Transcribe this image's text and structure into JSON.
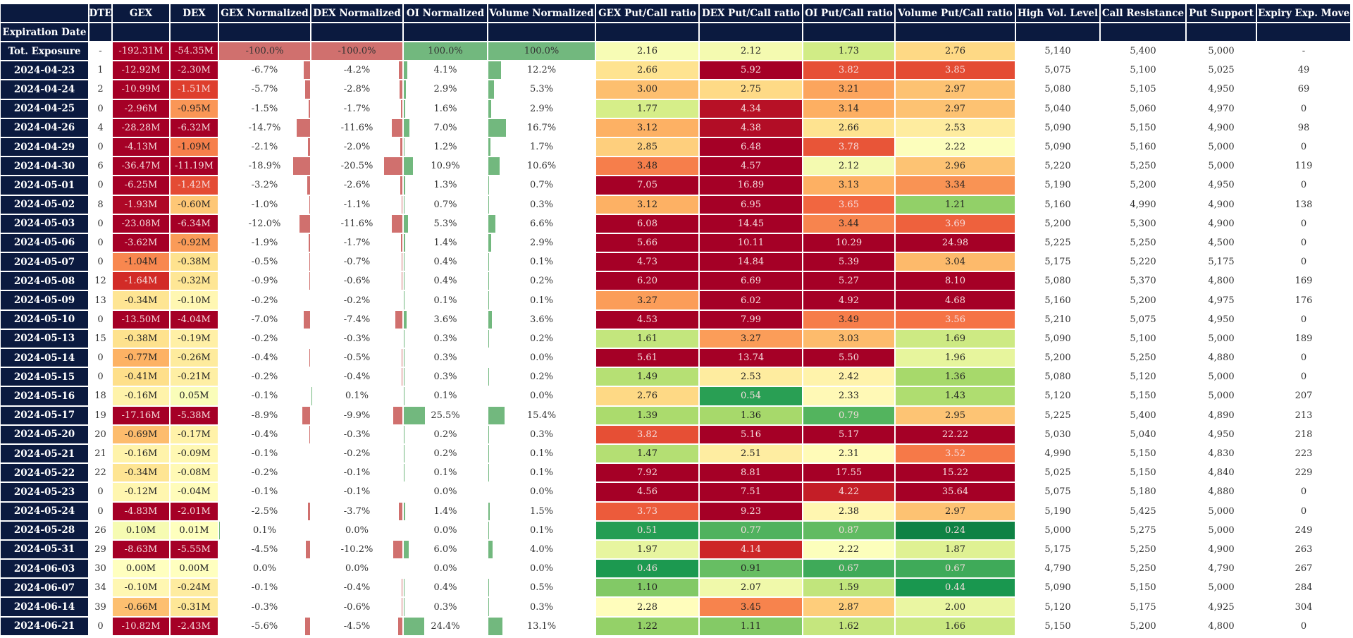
{
  "header": {
    "columns": [
      "",
      "DTE",
      "GEX",
      "DEX",
      "GEX Normalized",
      "DEX Normalized",
      "OI Normalized",
      "Volume Normalized",
      "GEX Put/Call ratio",
      "DEX Put/Call ratio",
      "OI Put/Call ratio",
      "Volume Put/Call ratio",
      "High Vol. Level",
      "Call Resistance",
      "Put Support",
      "Expiry Exp. Move"
    ],
    "index_name": "Expiration Date"
  },
  "colors": {
    "header_bg": "#0b1a3f",
    "bar_negative": "#d0706e",
    "bar_positive": "#72b87e",
    "heatmap_colormap": "RdYlGn",
    "exposure_range_millions": [
      -2,
      2
    ],
    "ratio_range": [
      0,
      4.5
    ]
  },
  "rows": [
    {
      "date": "Tot. Exposure",
      "dte": "-",
      "gex": "-192.31M",
      "dex": "-54.35M",
      "gex_norm": "-100.0%",
      "dex_norm": "-100.0%",
      "oi_norm": "100.0%",
      "vol_norm": "100.0%",
      "gex_pc": "2.16",
      "dex_pc": "2.12",
      "oi_pc": "1.73",
      "vol_pc": "2.76",
      "high_vol": "5,140",
      "call_res": "5,400",
      "put_sup": "5,000",
      "exp_move": "-"
    },
    {
      "date": "2024-04-23",
      "dte": "1",
      "gex": "-12.92M",
      "dex": "-2.30M",
      "gex_norm": "-6.7%",
      "dex_norm": "-4.2%",
      "oi_norm": "4.1%",
      "vol_norm": "12.2%",
      "gex_pc": "2.66",
      "dex_pc": "5.92",
      "oi_pc": "3.82",
      "vol_pc": "3.85",
      "high_vol": "5,075",
      "call_res": "5,100",
      "put_sup": "5,025",
      "exp_move": "49"
    },
    {
      "date": "2024-04-24",
      "dte": "2",
      "gex": "-10.99M",
      "dex": "-1.51M",
      "gex_norm": "-5.7%",
      "dex_norm": "-2.8%",
      "oi_norm": "2.9%",
      "vol_norm": "5.3%",
      "gex_pc": "3.00",
      "dex_pc": "2.75",
      "oi_pc": "3.21",
      "vol_pc": "2.97",
      "high_vol": "5,080",
      "call_res": "5,105",
      "put_sup": "4,950",
      "exp_move": "69"
    },
    {
      "date": "2024-04-25",
      "dte": "0",
      "gex": "-2.96M",
      "dex": "-0.95M",
      "gex_norm": "-1.5%",
      "dex_norm": "-1.7%",
      "oi_norm": "1.6%",
      "vol_norm": "2.9%",
      "gex_pc": "1.77",
      "dex_pc": "4.34",
      "oi_pc": "3.14",
      "vol_pc": "2.97",
      "high_vol": "5,040",
      "call_res": "5,060",
      "put_sup": "4,970",
      "exp_move": "0"
    },
    {
      "date": "2024-04-26",
      "dte": "4",
      "gex": "-28.28M",
      "dex": "-6.32M",
      "gex_norm": "-14.7%",
      "dex_norm": "-11.6%",
      "oi_norm": "7.0%",
      "vol_norm": "16.7%",
      "gex_pc": "3.12",
      "dex_pc": "4.38",
      "oi_pc": "2.66",
      "vol_pc": "2.53",
      "high_vol": "5,090",
      "call_res": "5,150",
      "put_sup": "4,900",
      "exp_move": "98"
    },
    {
      "date": "2024-04-29",
      "dte": "0",
      "gex": "-4.13M",
      "dex": "-1.09M",
      "gex_norm": "-2.1%",
      "dex_norm": "-2.0%",
      "oi_norm": "1.2%",
      "vol_norm": "1.7%",
      "gex_pc": "2.85",
      "dex_pc": "6.48",
      "oi_pc": "3.78",
      "vol_pc": "2.22",
      "high_vol": "5,090",
      "call_res": "5,160",
      "put_sup": "5,000",
      "exp_move": "0"
    },
    {
      "date": "2024-04-30",
      "dte": "6",
      "gex": "-36.47M",
      "dex": "-11.19M",
      "gex_norm": "-18.9%",
      "dex_norm": "-20.5%",
      "oi_norm": "10.9%",
      "vol_norm": "10.6%",
      "gex_pc": "3.48",
      "dex_pc": "4.57",
      "oi_pc": "2.12",
      "vol_pc": "2.96",
      "high_vol": "5,220",
      "call_res": "5,250",
      "put_sup": "5,000",
      "exp_move": "119"
    },
    {
      "date": "2024-05-01",
      "dte": "0",
      "gex": "-6.25M",
      "dex": "-1.42M",
      "gex_norm": "-3.2%",
      "dex_norm": "-2.6%",
      "oi_norm": "1.3%",
      "vol_norm": "0.7%",
      "gex_pc": "7.05",
      "dex_pc": "16.89",
      "oi_pc": "3.13",
      "vol_pc": "3.34",
      "high_vol": "5,190",
      "call_res": "5,200",
      "put_sup": "4,950",
      "exp_move": "0"
    },
    {
      "date": "2024-05-02",
      "dte": "8",
      "gex": "-1.93M",
      "dex": "-0.60M",
      "gex_norm": "-1.0%",
      "dex_norm": "-1.1%",
      "oi_norm": "0.7%",
      "vol_norm": "0.3%",
      "gex_pc": "3.12",
      "dex_pc": "6.95",
      "oi_pc": "3.65",
      "vol_pc": "1.21",
      "high_vol": "5,160",
      "call_res": "4,990",
      "put_sup": "4,900",
      "exp_move": "138"
    },
    {
      "date": "2024-05-03",
      "dte": "0",
      "gex": "-23.08M",
      "dex": "-6.34M",
      "gex_norm": "-12.0%",
      "dex_norm": "-11.6%",
      "oi_norm": "5.3%",
      "vol_norm": "6.6%",
      "gex_pc": "6.08",
      "dex_pc": "14.45",
      "oi_pc": "3.44",
      "vol_pc": "3.69",
      "high_vol": "5,200",
      "call_res": "5,300",
      "put_sup": "4,900",
      "exp_move": "0"
    },
    {
      "date": "2024-05-06",
      "dte": "0",
      "gex": "-3.62M",
      "dex": "-0.92M",
      "gex_norm": "-1.9%",
      "dex_norm": "-1.7%",
      "oi_norm": "1.4%",
      "vol_norm": "2.9%",
      "gex_pc": "5.66",
      "dex_pc": "10.11",
      "oi_pc": "10.29",
      "vol_pc": "24.98",
      "high_vol": "5,225",
      "call_res": "5,250",
      "put_sup": "4,500",
      "exp_move": "0"
    },
    {
      "date": "2024-05-07",
      "dte": "0",
      "gex": "-1.04M",
      "dex": "-0.38M",
      "gex_norm": "-0.5%",
      "dex_norm": "-0.7%",
      "oi_norm": "0.4%",
      "vol_norm": "0.1%",
      "gex_pc": "4.73",
      "dex_pc": "14.84",
      "oi_pc": "5.39",
      "vol_pc": "3.04",
      "high_vol": "5,175",
      "call_res": "5,220",
      "put_sup": "5,175",
      "exp_move": "0"
    },
    {
      "date": "2024-05-08",
      "dte": "12",
      "gex": "-1.64M",
      "dex": "-0.32M",
      "gex_norm": "-0.9%",
      "dex_norm": "-0.6%",
      "oi_norm": "0.4%",
      "vol_norm": "0.2%",
      "gex_pc": "6.20",
      "dex_pc": "6.69",
      "oi_pc": "5.27",
      "vol_pc": "8.10",
      "high_vol": "5,080",
      "call_res": "5,370",
      "put_sup": "4,800",
      "exp_move": "169"
    },
    {
      "date": "2024-05-09",
      "dte": "13",
      "gex": "-0.34M",
      "dex": "-0.10M",
      "gex_norm": "-0.2%",
      "dex_norm": "-0.2%",
      "oi_norm": "0.1%",
      "vol_norm": "0.1%",
      "gex_pc": "3.27",
      "dex_pc": "6.02",
      "oi_pc": "4.92",
      "vol_pc": "4.68",
      "high_vol": "5,160",
      "call_res": "5,200",
      "put_sup": "4,975",
      "exp_move": "176"
    },
    {
      "date": "2024-05-10",
      "dte": "0",
      "gex": "-13.50M",
      "dex": "-4.04M",
      "gex_norm": "-7.0%",
      "dex_norm": "-7.4%",
      "oi_norm": "3.6%",
      "vol_norm": "3.6%",
      "gex_pc": "4.53",
      "dex_pc": "7.99",
      "oi_pc": "3.49",
      "vol_pc": "3.56",
      "high_vol": "5,210",
      "call_res": "5,075",
      "put_sup": "4,950",
      "exp_move": "0"
    },
    {
      "date": "2024-05-13",
      "dte": "15",
      "gex": "-0.38M",
      "dex": "-0.19M",
      "gex_norm": "-0.2%",
      "dex_norm": "-0.3%",
      "oi_norm": "0.3%",
      "vol_norm": "0.2%",
      "gex_pc": "1.61",
      "dex_pc": "3.27",
      "oi_pc": "3.03",
      "vol_pc": "1.69",
      "high_vol": "5,090",
      "call_res": "5,100",
      "put_sup": "5,000",
      "exp_move": "189"
    },
    {
      "date": "2024-05-14",
      "dte": "0",
      "gex": "-0.77M",
      "dex": "-0.26M",
      "gex_norm": "-0.4%",
      "dex_norm": "-0.5%",
      "oi_norm": "0.3%",
      "vol_norm": "0.0%",
      "gex_pc": "5.61",
      "dex_pc": "13.74",
      "oi_pc": "5.50",
      "vol_pc": "1.96",
      "high_vol": "5,200",
      "call_res": "5,250",
      "put_sup": "4,880",
      "exp_move": "0"
    },
    {
      "date": "2024-05-15",
      "dte": "0",
      "gex": "-0.41M",
      "dex": "-0.21M",
      "gex_norm": "-0.2%",
      "dex_norm": "-0.4%",
      "oi_norm": "0.3%",
      "vol_norm": "0.2%",
      "gex_pc": "1.49",
      "dex_pc": "2.53",
      "oi_pc": "2.42",
      "vol_pc": "1.36",
      "high_vol": "5,080",
      "call_res": "5,120",
      "put_sup": "5,000",
      "exp_move": "0"
    },
    {
      "date": "2024-05-16",
      "dte": "18",
      "gex": "-0.16M",
      "dex": "0.05M",
      "gex_norm": "-0.1%",
      "dex_norm": "0.1%",
      "oi_norm": "0.1%",
      "vol_norm": "0.0%",
      "gex_pc": "2.76",
      "dex_pc": "0.54",
      "oi_pc": "2.33",
      "vol_pc": "1.43",
      "high_vol": "5,120",
      "call_res": "5,150",
      "put_sup": "5,000",
      "exp_move": "207"
    },
    {
      "date": "2024-05-17",
      "dte": "19",
      "gex": "-17.16M",
      "dex": "-5.38M",
      "gex_norm": "-8.9%",
      "dex_norm": "-9.9%",
      "oi_norm": "25.5%",
      "vol_norm": "15.4%",
      "gex_pc": "1.39",
      "dex_pc": "1.36",
      "oi_pc": "0.79",
      "vol_pc": "2.95",
      "high_vol": "5,225",
      "call_res": "5,400",
      "put_sup": "4,890",
      "exp_move": "213"
    },
    {
      "date": "2024-05-20",
      "dte": "20",
      "gex": "-0.69M",
      "dex": "-0.17M",
      "gex_norm": "-0.4%",
      "dex_norm": "-0.3%",
      "oi_norm": "0.2%",
      "vol_norm": "0.3%",
      "gex_pc": "3.82",
      "dex_pc": "5.16",
      "oi_pc": "5.17",
      "vol_pc": "22.22",
      "high_vol": "5,030",
      "call_res": "5,040",
      "put_sup": "4,950",
      "exp_move": "218"
    },
    {
      "date": "2024-05-21",
      "dte": "21",
      "gex": "-0.16M",
      "dex": "-0.09M",
      "gex_norm": "-0.1%",
      "dex_norm": "-0.2%",
      "oi_norm": "0.2%",
      "vol_norm": "0.1%",
      "gex_pc": "1.47",
      "dex_pc": "2.51",
      "oi_pc": "2.31",
      "vol_pc": "3.52",
      "high_vol": "4,990",
      "call_res": "5,150",
      "put_sup": "4,830",
      "exp_move": "223"
    },
    {
      "date": "2024-05-22",
      "dte": "22",
      "gex": "-0.34M",
      "dex": "-0.08M",
      "gex_norm": "-0.2%",
      "dex_norm": "-0.1%",
      "oi_norm": "0.1%",
      "vol_norm": "0.1%",
      "gex_pc": "7.92",
      "dex_pc": "8.81",
      "oi_pc": "17.55",
      "vol_pc": "15.22",
      "high_vol": "5,025",
      "call_res": "5,150",
      "put_sup": "4,840",
      "exp_move": "229"
    },
    {
      "date": "2024-05-23",
      "dte": "0",
      "gex": "-0.12M",
      "dex": "-0.04M",
      "gex_norm": "-0.1%",
      "dex_norm": "-0.1%",
      "oi_norm": "0.0%",
      "vol_norm": "0.0%",
      "gex_pc": "4.56",
      "dex_pc": "7.51",
      "oi_pc": "4.22",
      "vol_pc": "35.64",
      "high_vol": "5,075",
      "call_res": "5,180",
      "put_sup": "4,880",
      "exp_move": "0"
    },
    {
      "date": "2024-05-24",
      "dte": "0",
      "gex": "-4.83M",
      "dex": "-2.01M",
      "gex_norm": "-2.5%",
      "dex_norm": "-3.7%",
      "oi_norm": "1.4%",
      "vol_norm": "1.5%",
      "gex_pc": "3.73",
      "dex_pc": "9.23",
      "oi_pc": "2.38",
      "vol_pc": "2.97",
      "high_vol": "5,190",
      "call_res": "5,425",
      "put_sup": "5,000",
      "exp_move": "0"
    },
    {
      "date": "2024-05-28",
      "dte": "26",
      "gex": "0.10M",
      "dex": "0.01M",
      "gex_norm": "0.1%",
      "dex_norm": "0.0%",
      "oi_norm": "0.0%",
      "vol_norm": "0.1%",
      "gex_pc": "0.51",
      "dex_pc": "0.77",
      "oi_pc": "0.87",
      "vol_pc": "0.24",
      "high_vol": "5,000",
      "call_res": "5,275",
      "put_sup": "5,000",
      "exp_move": "249"
    },
    {
      "date": "2024-05-31",
      "dte": "29",
      "gex": "-8.63M",
      "dex": "-5.55M",
      "gex_norm": "-4.5%",
      "dex_norm": "-10.2%",
      "oi_norm": "6.0%",
      "vol_norm": "4.0%",
      "gex_pc": "1.97",
      "dex_pc": "4.14",
      "oi_pc": "2.22",
      "vol_pc": "1.87",
      "high_vol": "5,175",
      "call_res": "5,250",
      "put_sup": "4,900",
      "exp_move": "263"
    },
    {
      "date": "2024-06-03",
      "dte": "30",
      "gex": "0.00M",
      "dex": "0.00M",
      "gex_norm": "0.0%",
      "dex_norm": "0.0%",
      "oi_norm": "0.0%",
      "vol_norm": "0.0%",
      "gex_pc": "0.46",
      "dex_pc": "0.91",
      "oi_pc": "0.67",
      "vol_pc": "0.67",
      "high_vol": "4,790",
      "call_res": "5,250",
      "put_sup": "4,790",
      "exp_move": "267"
    },
    {
      "date": "2024-06-07",
      "dte": "34",
      "gex": "-0.10M",
      "dex": "-0.24M",
      "gex_norm": "-0.1%",
      "dex_norm": "-0.4%",
      "oi_norm": "0.4%",
      "vol_norm": "0.5%",
      "gex_pc": "1.10",
      "dex_pc": "2.07",
      "oi_pc": "1.59",
      "vol_pc": "0.44",
      "high_vol": "5,090",
      "call_res": "5,150",
      "put_sup": "5,000",
      "exp_move": "284"
    },
    {
      "date": "2024-06-14",
      "dte": "39",
      "gex": "-0.66M",
      "dex": "-0.31M",
      "gex_norm": "-0.3%",
      "dex_norm": "-0.6%",
      "oi_norm": "0.3%",
      "vol_norm": "0.3%",
      "gex_pc": "2.28",
      "dex_pc": "3.45",
      "oi_pc": "2.87",
      "vol_pc": "2.00",
      "high_vol": "5,120",
      "call_res": "5,175",
      "put_sup": "4,925",
      "exp_move": "304"
    },
    {
      "date": "2024-06-21",
      "dte": "0",
      "gex": "-10.82M",
      "dex": "-2.43M",
      "gex_norm": "-5.6%",
      "dex_norm": "-4.5%",
      "oi_norm": "24.4%",
      "vol_norm": "13.1%",
      "gex_pc": "1.22",
      "dex_pc": "1.11",
      "oi_pc": "1.62",
      "vol_pc": "1.66",
      "high_vol": "5,150",
      "call_res": "5,200",
      "put_sup": "4,800",
      "exp_move": "0"
    }
  ]
}
